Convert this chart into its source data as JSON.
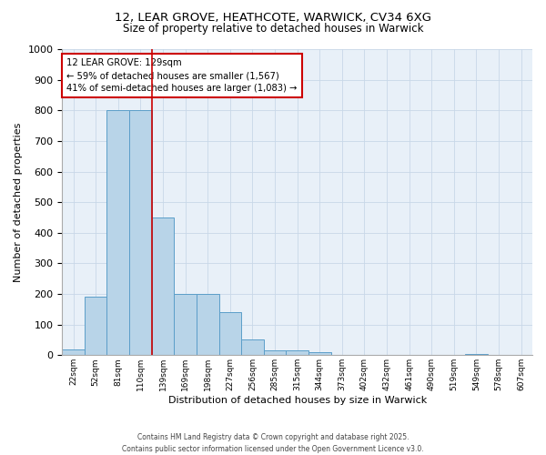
{
  "title_line1": "12, LEAR GROVE, HEATHCOTE, WARWICK, CV34 6XG",
  "title_line2": "Size of property relative to detached houses in Warwick",
  "xlabel": "Distribution of detached houses by size in Warwick",
  "ylabel": "Number of detached properties",
  "footer_line1": "Contains HM Land Registry data © Crown copyright and database right 2025.",
  "footer_line2": "Contains public sector information licensed under the Open Government Licence v3.0.",
  "annotation_title": "12 LEAR GROVE: 129sqm",
  "annotation_line1": "← 59% of detached houses are smaller (1,567)",
  "annotation_line2": "41% of semi-detached houses are larger (1,083) →",
  "bar_categories": [
    "22sqm",
    "52sqm",
    "81sqm",
    "110sqm",
    "139sqm",
    "169sqm",
    "198sqm",
    "227sqm",
    "256sqm",
    "285sqm",
    "315sqm",
    "344sqm",
    "373sqm",
    "402sqm",
    "432sqm",
    "461sqm",
    "490sqm",
    "519sqm",
    "549sqm",
    "578sqm",
    "607sqm"
  ],
  "bar_values": [
    20,
    190,
    800,
    800,
    450,
    200,
    200,
    140,
    50,
    15,
    15,
    10,
    0,
    0,
    0,
    0,
    0,
    0,
    5,
    0,
    0
  ],
  "red_line_x": 3.5,
  "bar_color": "#b8d4e8",
  "bar_edge_color": "#5b9ec9",
  "red_line_color": "#cc0000",
  "annotation_box_color": "#cc0000",
  "grid_color": "#c8d8e8",
  "background_color": "#e8f0f8",
  "ylim": [
    0,
    1000
  ],
  "yticks": [
    0,
    100,
    200,
    300,
    400,
    500,
    600,
    700,
    800,
    900,
    1000
  ]
}
